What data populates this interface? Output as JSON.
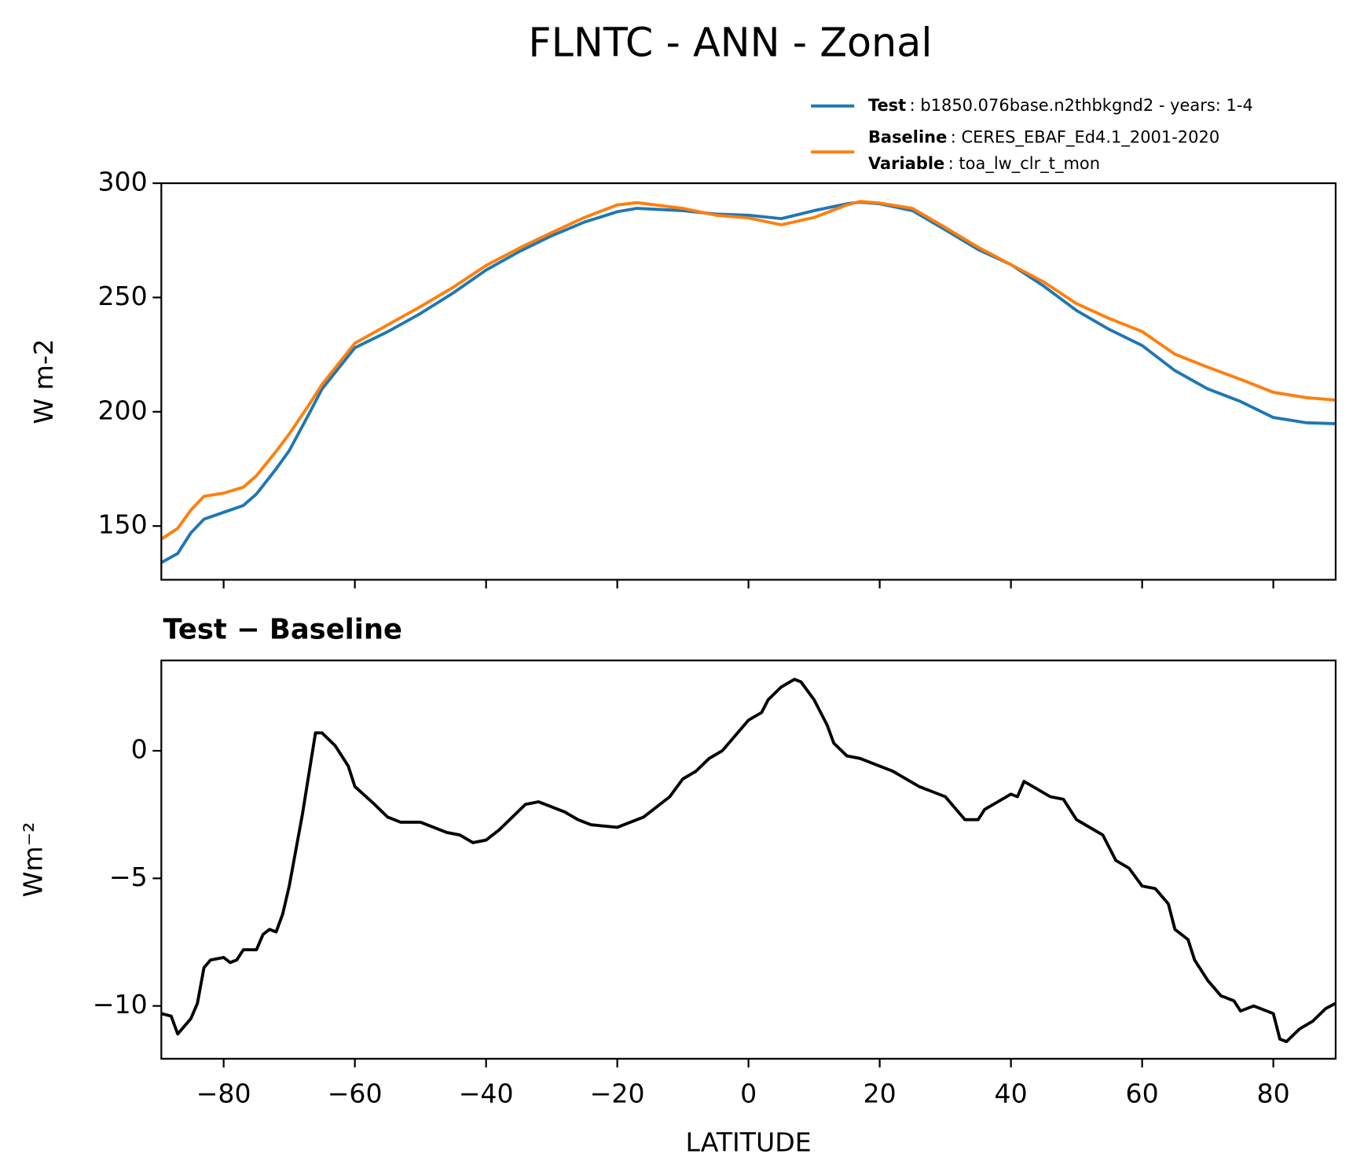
{
  "title": "FLNTC - ANN - Zonal",
  "chart_data": [
    {
      "type": "line",
      "ylabel": "W m-2",
      "x": [
        -89.5,
        -87,
        -85,
        -83,
        -80,
        -77,
        -75,
        -72,
        -70,
        -67,
        -65,
        -60,
        -55,
        -50,
        -45,
        -40,
        -35,
        -30,
        -25,
        -20,
        -17,
        -10,
        -5,
        0,
        5,
        10,
        15,
        17,
        20,
        25,
        30,
        35,
        40,
        45,
        50,
        55,
        60,
        65,
        70,
        75,
        80,
        85,
        89.5
      ],
      "series": [
        {
          "name": "Test",
          "description": ": b1850.076base.n2thbkgnd2 - years: 1-4",
          "color": "#1f77b4",
          "values": [
            134,
            138,
            147,
            153,
            156,
            159,
            164,
            175,
            183,
            199,
            210,
            228,
            235,
            243,
            252,
            262,
            270,
            277,
            283,
            287.5,
            289,
            288,
            286.5,
            286,
            284.5,
            288,
            291,
            291.7,
            291,
            288,
            279.6,
            271,
            264.4,
            255,
            244.3,
            236,
            229,
            218,
            210,
            204.5,
            197.5,
            195.2,
            194.8
          ]
        },
        {
          "name": "Baseline",
          "description": ": CERES_EBAF_Ed4.1_2001-2020",
          "color": "#ff7f0e",
          "values": [
            144.3,
            149,
            157,
            163,
            164.4,
            167,
            172,
            182.7,
            190.3,
            203,
            212,
            230,
            238,
            246,
            254.5,
            264,
            271.5,
            278.4,
            285,
            290.5,
            291.5,
            289,
            286,
            284.8,
            281.8,
            285,
            290.5,
            292,
            291.3,
            289,
            280.6,
            272,
            264.4,
            256.8,
            247.3,
            240.8,
            235.1,
            225.2,
            219.5,
            214.2,
            208.5,
            206.2,
            205.1
          ]
        }
      ],
      "legend_extra": {
        "name": "Variable",
        "description": ": toa_lw_clr_t_mon"
      },
      "xlim": [
        -89.5,
        89.5
      ],
      "ylim": [
        126.5,
        300
      ],
      "xticks": [
        -80,
        -60,
        -40,
        -20,
        0,
        20,
        40,
        60,
        80
      ],
      "show_xtick_labels": false,
      "yticks": [
        150,
        200,
        250,
        300
      ]
    },
    {
      "type": "line",
      "title": "Test − Baseline",
      "ylabel": "Wm⁻²",
      "xlabel": "LATITUDE",
      "x": [
        -89.5,
        -88,
        -87,
        -85,
        -84,
        -83,
        -82,
        -80,
        -79,
        -78,
        -77,
        -75,
        -74,
        -73,
        -72,
        -71,
        -70,
        -68,
        -66,
        -65,
        -63,
        -61,
        -60,
        -57,
        -55,
        -53,
        -50,
        -48,
        -46,
        -44,
        -42,
        -40,
        -38,
        -36,
        -34,
        -32,
        -30,
        -28,
        -26,
        -24,
        -20,
        -18,
        -16,
        -14,
        -12,
        -10,
        -8,
        -6,
        -4,
        -2,
        0,
        2,
        3,
        5,
        7,
        8,
        10,
        12,
        13,
        15,
        17,
        19,
        22,
        24,
        26,
        28,
        30,
        31,
        33,
        35,
        36,
        38,
        40,
        41,
        42,
        44,
        46,
        48,
        50,
        52,
        54,
        56,
        58,
        60,
        62,
        64,
        65,
        67,
        68,
        70,
        72,
        74,
        75,
        77,
        79,
        80,
        81,
        82,
        84,
        86,
        88,
        89.5
      ],
      "series": [
        {
          "color": "#000000",
          "values": [
            -10.3,
            -10.4,
            -11.1,
            -10.5,
            -9.9,
            -8.5,
            -8.2,
            -8.1,
            -8.3,
            -8.2,
            -7.8,
            -7.8,
            -7.2,
            -7.0,
            -7.1,
            -6.4,
            -5.3,
            -2.5,
            0.7,
            0.7,
            0.2,
            -0.6,
            -1.4,
            -2.1,
            -2.6,
            -2.8,
            -2.8,
            -3.0,
            -3.2,
            -3.3,
            -3.6,
            -3.5,
            -3.1,
            -2.6,
            -2.1,
            -2.0,
            -2.2,
            -2.4,
            -2.7,
            -2.9,
            -3.0,
            -2.8,
            -2.6,
            -2.2,
            -1.8,
            -1.1,
            -0.8,
            -0.3,
            0.0,
            0.6,
            1.2,
            1.5,
            2.0,
            2.5,
            2.8,
            2.7,
            2.0,
            1.0,
            0.3,
            -0.2,
            -0.3,
            -0.5,
            -0.8,
            -1.1,
            -1.4,
            -1.6,
            -1.8,
            -2.1,
            -2.7,
            -2.7,
            -2.3,
            -2.0,
            -1.7,
            -1.8,
            -1.2,
            -1.5,
            -1.8,
            -1.9,
            -2.7,
            -3.0,
            -3.3,
            -4.3,
            -4.6,
            -5.3,
            -5.4,
            -6.0,
            -7.0,
            -7.4,
            -8.2,
            -9.0,
            -9.6,
            -9.8,
            -10.2,
            -10.0,
            -10.2,
            -10.3,
            -11.3,
            -11.4,
            -10.9,
            -10.6,
            -10.1,
            -9.9
          ]
        }
      ],
      "xlim": [
        -89.5,
        89.5
      ],
      "ylim": [
        -12.07,
        3.54
      ],
      "xticks": [
        {
          "value": -80,
          "label": "−80"
        },
        {
          "value": -60,
          "label": "−60"
        },
        {
          "value": -40,
          "label": "−40"
        },
        {
          "value": -20,
          "label": "−20"
        },
        0,
        20,
        40,
        60,
        80
      ],
      "show_xtick_labels": true,
      "yticks": [
        {
          "value": -10,
          "label": "−10"
        },
        {
          "value": -5,
          "label": "−5"
        },
        0
      ]
    }
  ]
}
